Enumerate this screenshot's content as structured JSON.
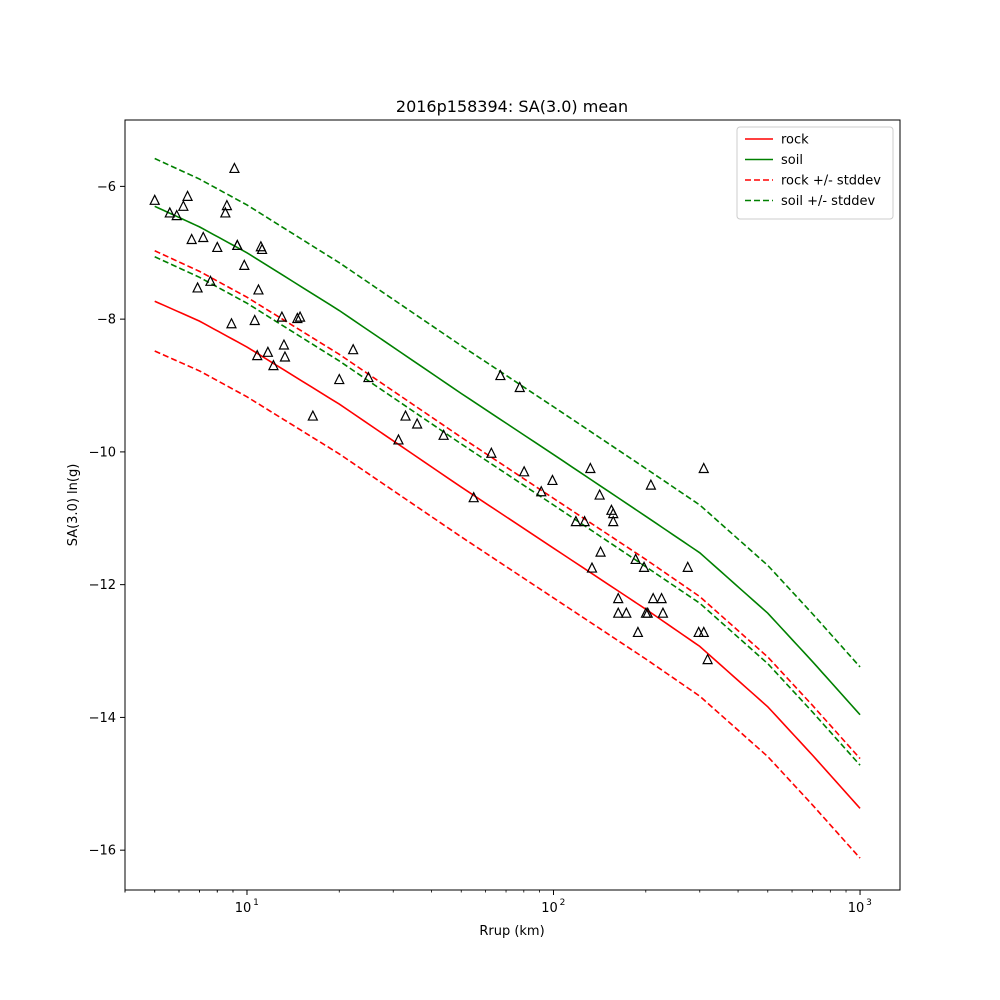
{
  "chart_data": {
    "type": "line",
    "title": "2016p158394: SA(3.0) mean",
    "xlabel": "Rrup (km)",
    "ylabel": "SA(3.0) ln(g)",
    "x_scale": "log",
    "xlim": [
      4,
      1350
    ],
    "ylim": [
      -16.6,
      -5.0
    ],
    "grid": false,
    "legend_position": "top-right",
    "x_ticks": [
      {
        "value": 10,
        "mantissa": "10",
        "exp": "1"
      },
      {
        "value": 100,
        "mantissa": "10",
        "exp": "2"
      },
      {
        "value": 1000,
        "mantissa": "10",
        "exp": "3"
      }
    ],
    "y_ticks": [
      {
        "value": -6,
        "label": "−6"
      },
      {
        "value": -8,
        "label": "−8"
      },
      {
        "value": -10,
        "label": "−10"
      },
      {
        "value": -12,
        "label": "−12"
      },
      {
        "value": -14,
        "label": "−14"
      },
      {
        "value": -16,
        "label": "−16"
      }
    ],
    "series": [
      {
        "name": "rock",
        "color": "#ff0000",
        "dashed": false,
        "x": [
          5,
          7,
          10,
          20,
          50,
          100,
          200,
          300,
          500,
          700,
          1000
        ],
        "y": [
          -7.73,
          -8.03,
          -8.42,
          -9.28,
          -10.53,
          -11.45,
          -12.37,
          -12.93,
          -13.84,
          -14.57,
          -15.37
        ]
      },
      {
        "name": "soil",
        "color": "#008000",
        "dashed": false,
        "x": [
          5,
          7,
          10,
          20,
          50,
          100,
          200,
          300,
          500,
          700,
          1000
        ],
        "y": [
          -6.3,
          -6.61,
          -7.0,
          -7.87,
          -9.12,
          -10.04,
          -10.97,
          -11.52,
          -12.43,
          -13.16,
          -13.96
        ]
      },
      {
        "name": "rock +/- stddev",
        "color": "#ff0000",
        "dashed": true,
        "legend": true,
        "x": [
          5,
          7,
          10,
          20,
          50,
          100,
          200,
          300,
          500,
          700,
          1000
        ],
        "y": [
          -6.97,
          -7.28,
          -7.67,
          -8.53,
          -9.78,
          -10.7,
          -11.62,
          -12.18,
          -13.09,
          -13.82,
          -14.62
        ]
      },
      {
        "name": "rock +/- stddev",
        "color": "#ff0000",
        "dashed": true,
        "legend": false,
        "x": [
          5,
          7,
          10,
          20,
          50,
          100,
          200,
          300,
          500,
          700,
          1000
        ],
        "y": [
          -8.48,
          -8.78,
          -9.17,
          -10.03,
          -11.28,
          -12.2,
          -13.12,
          -13.68,
          -14.59,
          -15.32,
          -16.12
        ]
      },
      {
        "name": "soil +/- stddev",
        "color": "#008000",
        "dashed": true,
        "legend": true,
        "x": [
          5,
          7,
          10,
          20,
          50,
          100,
          200,
          300,
          500,
          700,
          1000
        ],
        "y": [
          -5.58,
          -5.89,
          -6.28,
          -7.15,
          -8.4,
          -9.32,
          -10.25,
          -10.8,
          -11.71,
          -12.44,
          -13.24
        ]
      },
      {
        "name": "soil +/- stddev",
        "color": "#008000",
        "dashed": true,
        "legend": false,
        "x": [
          5,
          7,
          10,
          20,
          50,
          100,
          200,
          300,
          500,
          700,
          1000
        ],
        "y": [
          -7.06,
          -7.37,
          -7.76,
          -8.63,
          -9.88,
          -10.8,
          -11.73,
          -12.28,
          -13.19,
          -13.92,
          -14.72
        ]
      }
    ],
    "observations": {
      "marker": "triangle",
      "color": "#000000",
      "x": [
        5.0,
        5.6,
        5.9,
        6.2,
        6.4,
        6.6,
        6.9,
        7.2,
        7.6,
        8.0,
        8.5,
        8.6,
        8.9,
        9.1,
        9.3,
        9.3,
        9.8,
        10.6,
        10.8,
        10.9,
        11.1,
        11.2,
        11.7,
        12.2,
        13.0,
        13.2,
        13.3,
        14.6,
        14.9,
        16.4,
        20.0,
        22.2,
        24.9,
        31.2,
        32.9,
        35.9,
        43.8,
        54.9,
        62.7,
        67.1,
        77.6,
        80.2,
        91.2,
        99.2,
        118.3,
        126.3,
        131.9,
        133.5,
        141.4,
        142.4,
        154.5,
        156.6,
        156.6,
        162.6,
        162.6,
        172.8,
        185.3,
        188.5,
        197.4,
        200.3,
        202.9,
        207.8,
        211.4,
        225.2,
        227.5,
        274.1,
        297.5,
        309.1,
        309.1,
        318.2
      ],
      "y": [
        -6.21,
        -6.4,
        -6.44,
        -6.3,
        -6.15,
        -6.8,
        -7.53,
        -6.77,
        -7.43,
        -6.92,
        -6.4,
        -6.29,
        -8.07,
        -5.73,
        -6.89,
        -6.89,
        -7.19,
        -8.02,
        -8.55,
        -7.56,
        -6.91,
        -6.95,
        -8.5,
        -8.7,
        -7.97,
        -8.39,
        -8.57,
        -7.99,
        -7.97,
        -9.46,
        -8.91,
        -8.46,
        -8.88,
        -9.82,
        -9.46,
        -9.58,
        -9.75,
        -10.69,
        -10.02,
        -8.85,
        -9.03,
        -10.3,
        -10.6,
        -10.43,
        -11.05,
        -11.05,
        -10.25,
        -11.75,
        -10.65,
        -11.51,
        -10.88,
        -11.05,
        -10.93,
        -12.21,
        -12.43,
        -12.43,
        -11.62,
        -12.72,
        -11.74,
        -12.43,
        -12.43,
        -10.5,
        -12.21,
        -12.21,
        -12.43,
        -11.74,
        -12.72,
        -10.25,
        -12.72,
        -13.13
      ]
    }
  }
}
